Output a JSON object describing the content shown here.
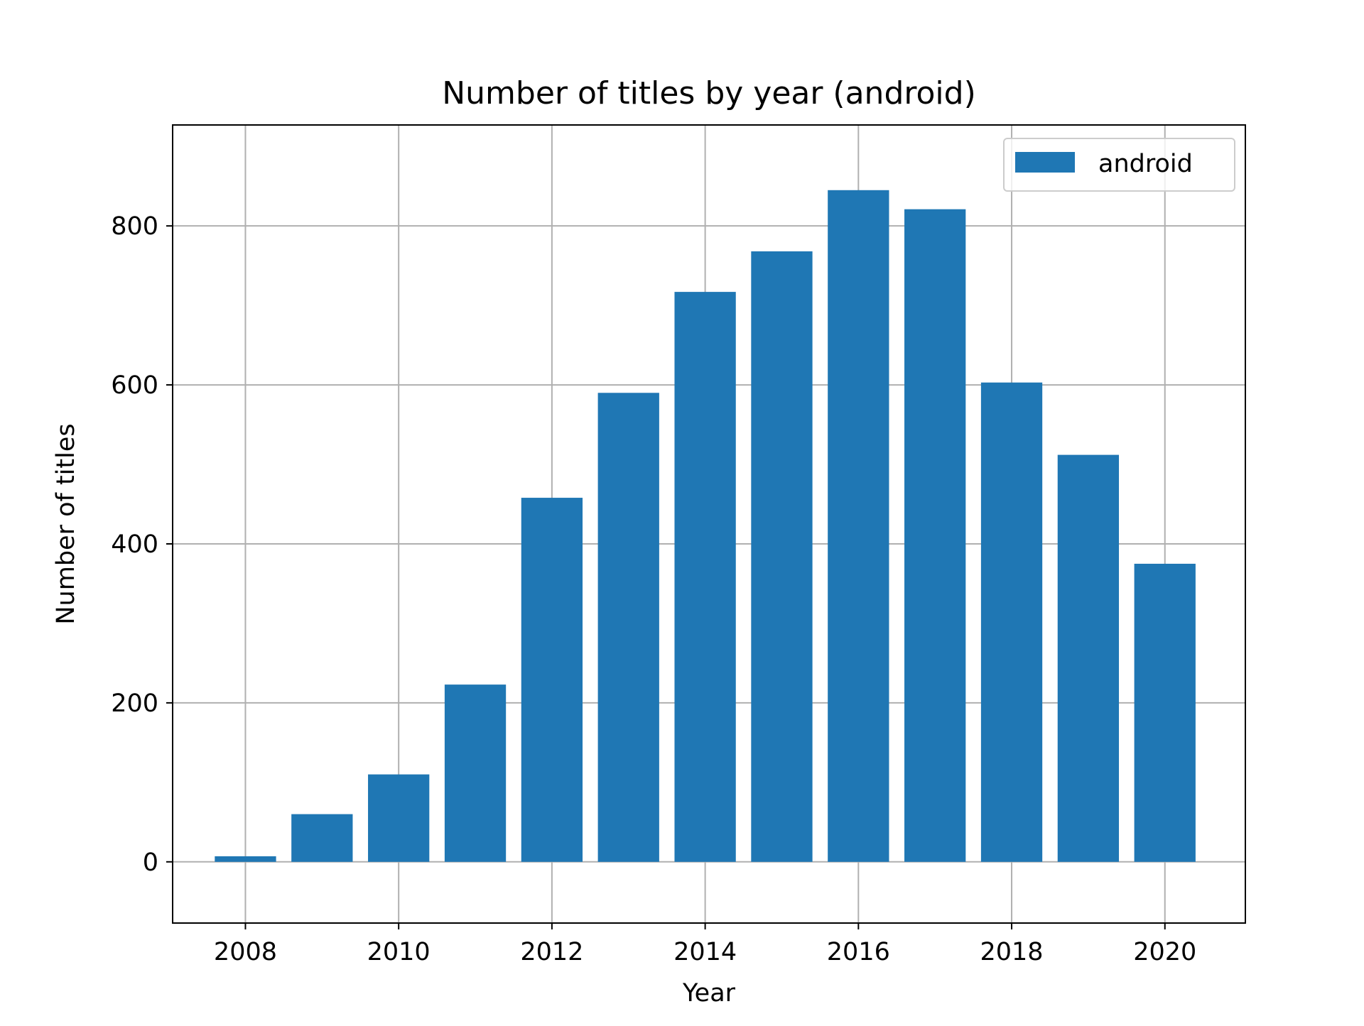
{
  "chart_data": {
    "type": "bar",
    "title": "Number of titles by year (android)",
    "xlabel": "Year",
    "ylabel": "Number of titles",
    "x": [
      2008,
      2009,
      2010,
      2011,
      2012,
      2013,
      2014,
      2015,
      2016,
      2017,
      2018,
      2019,
      2020
    ],
    "series": [
      {
        "name": "android",
        "color": "#1f77b4",
        "values": [
          7,
          60,
          110,
          223,
          458,
          590,
          717,
          768,
          845,
          821,
          603,
          512,
          375
        ]
      }
    ],
    "xlim": [
      2007.05,
      2021.05
    ],
    "ylim": [
      -77,
      927
    ],
    "xticks": [
      2008,
      2010,
      2012,
      2014,
      2016,
      2018,
      2020
    ],
    "xtick_labels": [
      "2008",
      "2010",
      "2012",
      "2014",
      "2016",
      "2018",
      "2020"
    ],
    "yticks": [
      0,
      200,
      400,
      600,
      800
    ],
    "ytick_labels": [
      "0",
      "200",
      "400",
      "600",
      "800"
    ],
    "grid": true,
    "legend": "top-right"
  }
}
